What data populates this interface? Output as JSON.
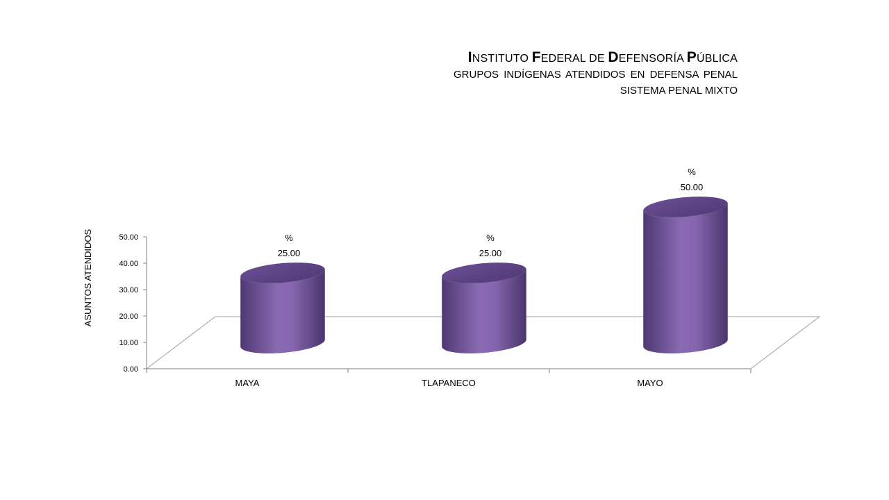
{
  "header": {
    "title_words": [
      {
        "first": "I",
        "rest": "NSTITUTO"
      },
      {
        "first": "F",
        "rest": "EDERAL DE"
      },
      {
        "first": "D",
        "rest": "EFENSORÍA"
      },
      {
        "first": "P",
        "rest": "ÚBLICA"
      }
    ],
    "subtitle": "GRUPOS INDÍGENAS ATENDIDOS EN DEFENSA PENAL",
    "subtitle2": "SISTEMA PENAL MIXTO"
  },
  "chart_data": {
    "type": "bar",
    "style": "3d-cylinder",
    "categories": [
      "MAYA",
      "TLAPANECO",
      "MAYO"
    ],
    "values": [
      25,
      25,
      50
    ],
    "data_labels": [
      {
        "unit": "%",
        "value": "25.00"
      },
      {
        "unit": "%",
        "value": "25.00"
      },
      {
        "unit": "%",
        "value": "50.00"
      }
    ],
    "ylabel": "ASUNTOS ATENDIDOS",
    "xlabel": "",
    "ylim": [
      0,
      50
    ],
    "yticks": [
      "0.00",
      "10.00",
      "20.00",
      "30.00",
      "40.00",
      "50.00"
    ],
    "bar_color": "#7b5fa8",
    "grid": false,
    "legend": "none"
  }
}
